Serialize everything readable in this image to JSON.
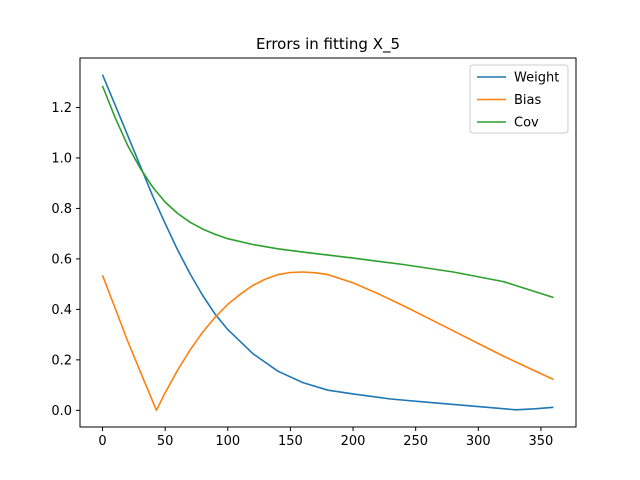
{
  "chart_data": {
    "type": "line",
    "title": "Errors in fitting X_5",
    "xlabel": "",
    "ylabel": "",
    "xlim": [
      -18,
      378
    ],
    "ylim": [
      -0.066,
      1.396
    ],
    "x_ticks": [
      0,
      50,
      100,
      150,
      200,
      250,
      300,
      350
    ],
    "x_tick_labels": [
      "0",
      "50",
      "100",
      "150",
      "200",
      "250",
      "300",
      "350"
    ],
    "y_ticks": [
      0.0,
      0.2,
      0.4,
      0.6,
      0.8,
      1.0,
      1.2
    ],
    "y_tick_labels": [
      "0.0",
      "0.2",
      "0.4",
      "0.6",
      "0.8",
      "1.0",
      "1.2"
    ],
    "grid": false,
    "legend_position": "top-right",
    "series": [
      {
        "name": "Weight",
        "color": "#1f77b4",
        "x": [
          0,
          10,
          20,
          30,
          40,
          50,
          60,
          70,
          80,
          90,
          100,
          120,
          140,
          160,
          180,
          200,
          230,
          260,
          300,
          330,
          345,
          360
        ],
        "y": [
          1.33,
          1.21,
          1.09,
          0.97,
          0.85,
          0.74,
          0.635,
          0.54,
          0.455,
          0.38,
          0.32,
          0.225,
          0.155,
          0.11,
          0.08,
          0.065,
          0.045,
          0.032,
          0.015,
          0.002,
          0.006,
          0.012
        ]
      },
      {
        "name": "Bias",
        "color": "#ff7f0e",
        "x": [
          0,
          10,
          20,
          30,
          38,
          43,
          50,
          60,
          70,
          80,
          90,
          100,
          110,
          120,
          130,
          140,
          150,
          160,
          170,
          180,
          200,
          220,
          240,
          260,
          280,
          300,
          320,
          340,
          360
        ],
        "y": [
          0.535,
          0.405,
          0.275,
          0.155,
          0.06,
          0.0,
          0.07,
          0.16,
          0.24,
          0.31,
          0.37,
          0.42,
          0.46,
          0.495,
          0.52,
          0.538,
          0.546,
          0.548,
          0.545,
          0.538,
          0.505,
          0.462,
          0.415,
          0.365,
          0.315,
          0.265,
          0.215,
          0.168,
          0.122
        ]
      },
      {
        "name": "Cov",
        "color": "#2ca02c",
        "x": [
          0,
          10,
          20,
          30,
          40,
          50,
          60,
          70,
          80,
          90,
          100,
          120,
          140,
          160,
          180,
          200,
          240,
          280,
          320,
          360
        ],
        "y": [
          1.285,
          1.16,
          1.05,
          0.96,
          0.885,
          0.825,
          0.78,
          0.745,
          0.718,
          0.697,
          0.68,
          0.657,
          0.64,
          0.627,
          0.615,
          0.603,
          0.578,
          0.548,
          0.51,
          0.447
        ]
      }
    ]
  }
}
